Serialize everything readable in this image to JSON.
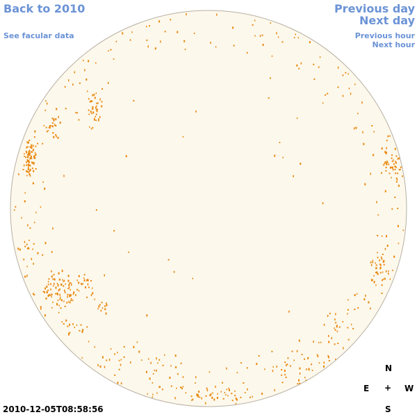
{
  "nav": {
    "back": "Back to 2010",
    "facular": "See facular data",
    "previous_day": "Previous day",
    "next_day": "Next day",
    "previous_hour": "Previous hour",
    "next_hour": "Next hour"
  },
  "compass": {
    "n": "N",
    "e": "E",
    "center": "+",
    "w": "W",
    "s": "S"
  },
  "timestamp": "2010-12-05T08:58:56",
  "colors": {
    "disk_fill": "#fdf8ec",
    "disk_outline": "#b7b0a3",
    "facula": "#e8870c",
    "link": "#6b93d6"
  }
}
